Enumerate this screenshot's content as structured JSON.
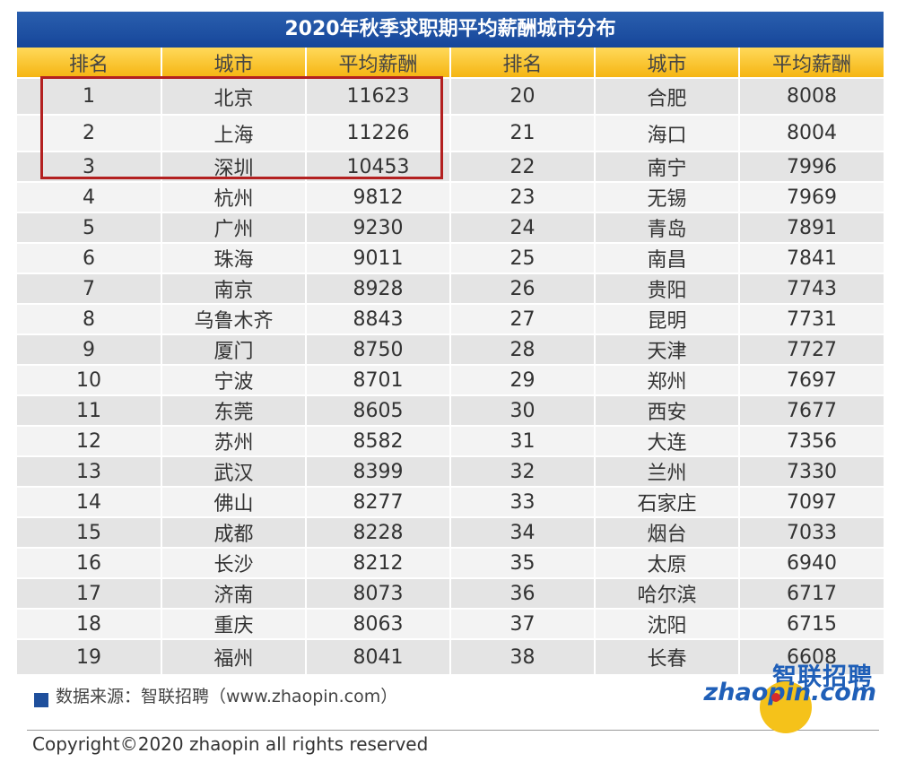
{
  "table": {
    "title": "2020年秋季求职期平均薪酬城市分布",
    "headers": [
      "排名",
      "城市",
      "平均薪酬",
      "排名",
      "城市",
      "平均薪酬"
    ],
    "rows": [
      [
        "1",
        "北京",
        "11623",
        "20",
        "合肥",
        "8008"
      ],
      [
        "2",
        "上海",
        "11226",
        "21",
        "海口",
        "8004"
      ],
      [
        "3",
        "深圳",
        "10453",
        "22",
        "南宁",
        "7996"
      ],
      [
        "4",
        "杭州",
        "9812",
        "23",
        "无锡",
        "7969"
      ],
      [
        "5",
        "广州",
        "9230",
        "24",
        "青岛",
        "7891"
      ],
      [
        "6",
        "珠海",
        "9011",
        "25",
        "南昌",
        "7841"
      ],
      [
        "7",
        "南京",
        "8928",
        "26",
        "贵阳",
        "7743"
      ],
      [
        "8",
        "乌鲁木齐",
        "8843",
        "27",
        "昆明",
        "7731"
      ],
      [
        "9",
        "厦门",
        "8750",
        "28",
        "天津",
        "7727"
      ],
      [
        "10",
        "宁波",
        "8701",
        "29",
        "郑州",
        "7697"
      ],
      [
        "11",
        "东莞",
        "8605",
        "30",
        "西安",
        "7677"
      ],
      [
        "12",
        "苏州",
        "8582",
        "31",
        "大连",
        "7356"
      ],
      [
        "13",
        "武汉",
        "8399",
        "32",
        "兰州",
        "7330"
      ],
      [
        "14",
        "佛山",
        "8277",
        "33",
        "石家庄",
        "7097"
      ],
      [
        "15",
        "成都",
        "8228",
        "34",
        "烟台",
        "7033"
      ],
      [
        "16",
        "长沙",
        "8212",
        "35",
        "太原",
        "6940"
      ],
      [
        "17",
        "济南",
        "8073",
        "36",
        "哈尔滨",
        "6717"
      ],
      [
        "18",
        "重庆",
        "8063",
        "37",
        "沈阳",
        "6715"
      ],
      [
        "19",
        "福州",
        "8041",
        "38",
        "长春",
        "6608"
      ]
    ]
  },
  "highlight_color": "#b32020",
  "header_color": "#f5b512",
  "title_bar_color": "#1f4f9c",
  "source_text": "数据来源：智联招聘（www.zhaopin.com）",
  "logo": {
    "cn": "智联招聘",
    "en": "zhaopin.com"
  },
  "copyright": "Copyright©2020 zhaopin all rights reserved"
}
